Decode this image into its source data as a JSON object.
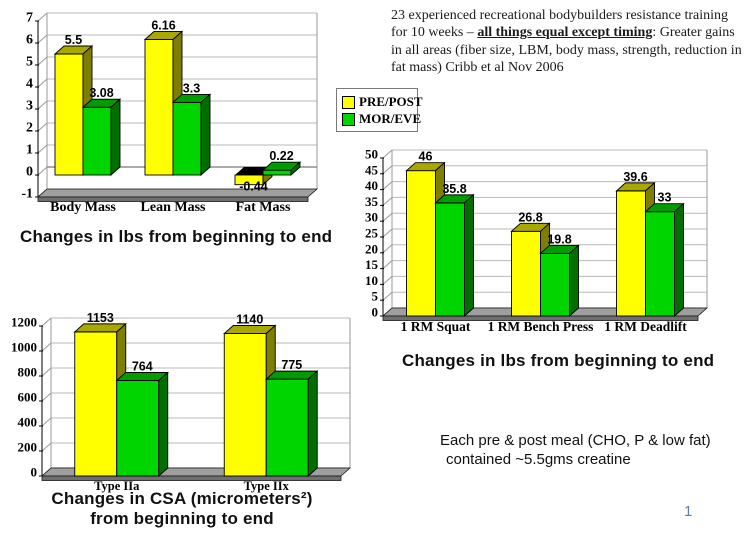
{
  "slide": {
    "background": "#FFFFFF",
    "study_note": {
      "segments": [
        {
          "text": "23 experienced recreational bodybuilders resistance training for 10 weeks – ",
          "emphasis": false
        },
        {
          "text": "all things equal except timing",
          "emphasis": true
        },
        {
          "text": ": Greater gains in all areas (fiber size, LBM, body mass, strength, reduction in fat mass) Cribb et al Nov 2006",
          "emphasis": false
        }
      ]
    },
    "creatine_note": {
      "line1": "Each pre & post meal (CHO, P & low fat)",
      "line2": "contained ~5.5gms creatine"
    },
    "page_number": "1"
  },
  "legend": {
    "position": "top-center",
    "items": [
      {
        "label": "PRE/POST",
        "color": "#FFFF00"
      },
      {
        "label": "MOR/EVE",
        "color": "#00D500"
      }
    ]
  },
  "chart_data": [
    {
      "type": "bar",
      "style": "3d-column",
      "title": "Changes in lbs from beginning to end",
      "xlabel": "",
      "ylabel": "",
      "grid": true,
      "ylim": [
        -1,
        7
      ],
      "ytick_step": 1,
      "categories": [
        "Body Mass",
        "Lean Mass",
        "Fat Mass"
      ],
      "series": [
        {
          "name": "PRE/POST",
          "values": [
            5.5,
            6.16,
            -0.44
          ],
          "front": "#FFFF00",
          "top": "#A8A800",
          "side": "#7E7E00"
        },
        {
          "name": "MOR/EVE",
          "values": [
            3.08,
            3.3,
            0.22
          ],
          "front": "#00D500",
          "top": "#009C00",
          "side": "#006F00"
        }
      ]
    },
    {
      "type": "bar",
      "style": "3d-column",
      "title": "Changes in lbs from beginning to end",
      "xlabel": "",
      "ylabel": "",
      "grid": true,
      "ylim": [
        0,
        50
      ],
      "ytick_step": 5,
      "categories": [
        "1 RM Squat",
        "1 RM Bench Press",
        "1 RM Deadlift"
      ],
      "series": [
        {
          "name": "PRE/POST",
          "values": [
            46,
            26.8,
            39.6
          ],
          "front": "#FFFF00",
          "top": "#A8A800",
          "side": "#7E7E00"
        },
        {
          "name": "MOR/EVE",
          "values": [
            35.8,
            19.8,
            33
          ],
          "front": "#00D500",
          "top": "#009C00",
          "side": "#006F00"
        }
      ]
    },
    {
      "type": "bar",
      "style": "3d-column",
      "title": "Changes in CSA (micrometers²) from beginning to end",
      "title_lines": [
        "Changes in CSA (micrometers²)",
        "from beginning to end"
      ],
      "xlabel": "",
      "ylabel": "",
      "grid": true,
      "ylim": [
        0,
        1200
      ],
      "ytick_step": 200,
      "categories": [
        "Type IIa",
        "Type IIx"
      ],
      "series": [
        {
          "name": "PRE/POST",
          "values": [
            1153,
            1140
          ],
          "front": "#FFFF00",
          "top": "#A8A800",
          "side": "#7E7E00"
        },
        {
          "name": "MOR/EVE",
          "values": [
            764,
            775
          ],
          "front": "#00D500",
          "top": "#009C00",
          "side": "#006F00"
        }
      ]
    }
  ]
}
